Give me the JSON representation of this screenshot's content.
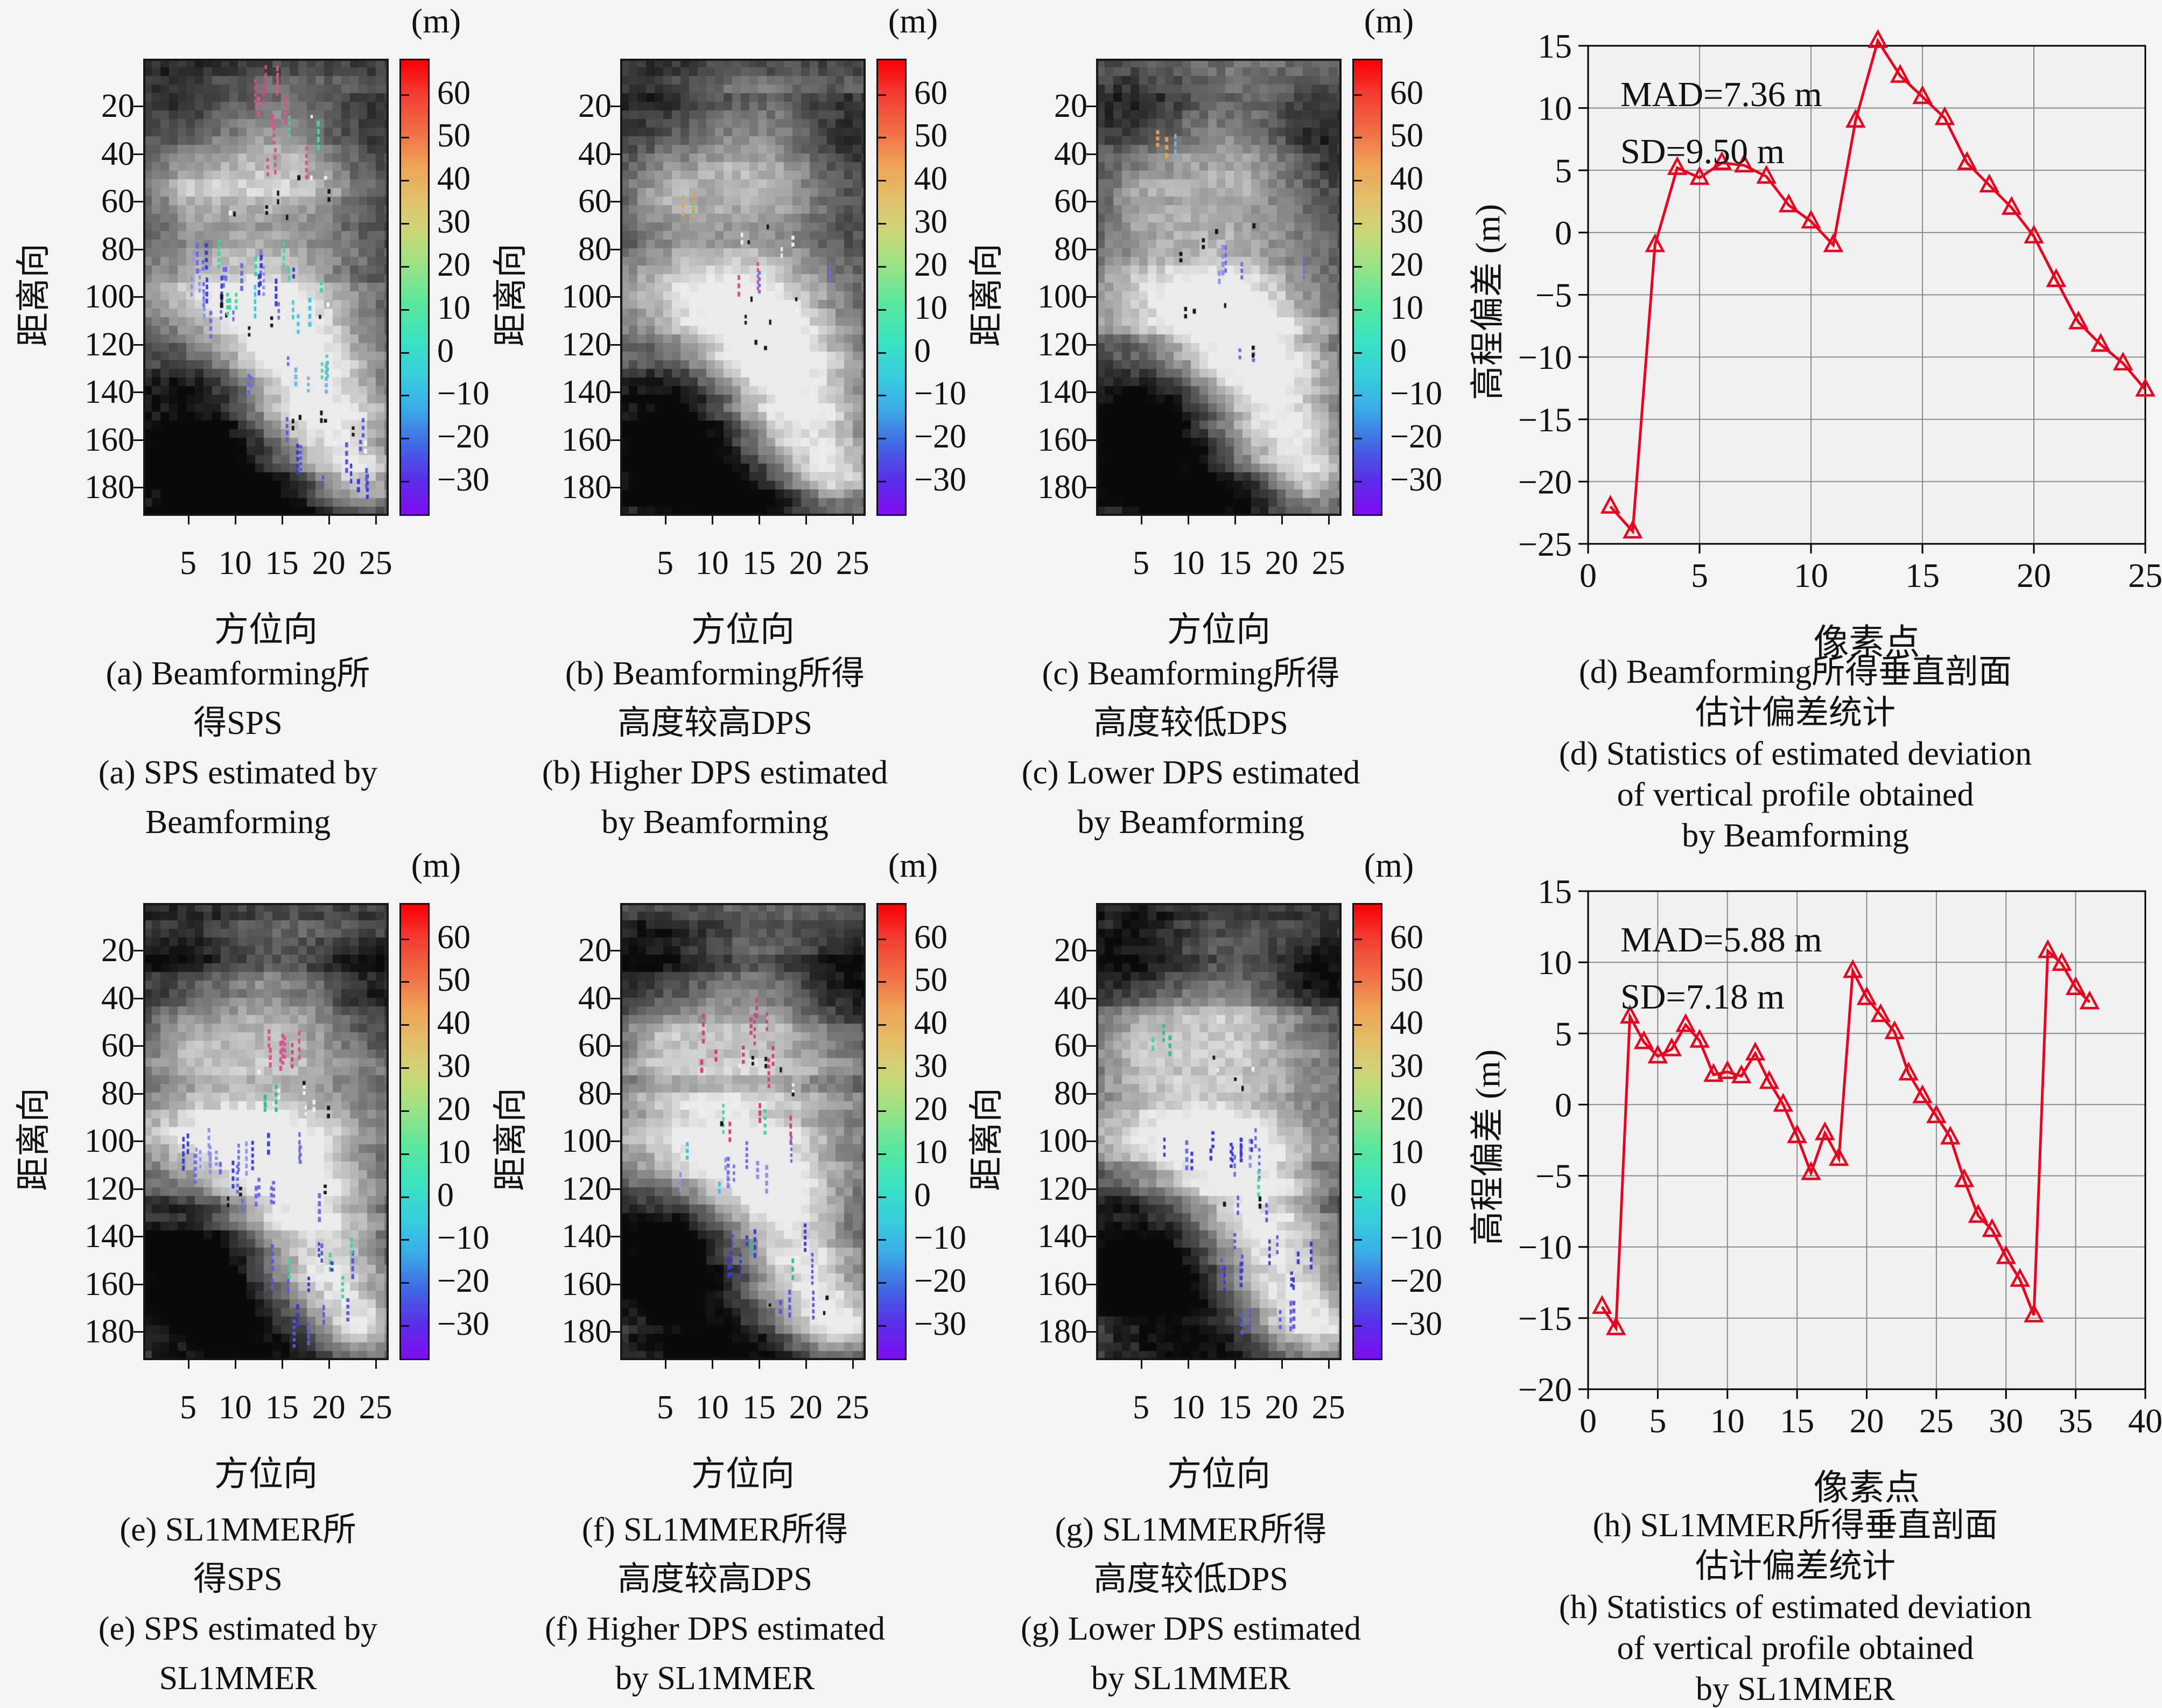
{
  "figure": {
    "background": "#f4f3f5",
    "frame_color": "#000000",
    "grid_color": "#8a8a8a",
    "plot_bg": "#f1f0f2"
  },
  "image_axes": {
    "ylabel": "距离向",
    "xlabel": "方位向",
    "y_ticks": [
      20,
      40,
      60,
      80,
      100,
      120,
      140,
      160,
      180
    ],
    "x_ticks": [
      5,
      10,
      15,
      20,
      25
    ]
  },
  "colorbar": {
    "title": "(m)",
    "ticks": [
      60,
      50,
      40,
      30,
      20,
      10,
      0,
      -10,
      -20,
      -30
    ],
    "gradient": [
      "#f90008",
      "#f23f33",
      "#f06c44",
      "#efa255",
      "#e2c16b",
      "#c9d878",
      "#93e388",
      "#57e79e",
      "#3ce2c0",
      "#37cfdd",
      "#3aaae6",
      "#4169e3",
      "#5a2fe8",
      "#7d0df2"
    ]
  },
  "panels": [
    {
      "id": "a",
      "seed": 101,
      "caption": [
        "(a) Beamforming所",
        "得SPS",
        "(a) SPS estimated by",
        "Beamforming"
      ],
      "scatter": [
        [
          0.52,
          0.06,
          0.14,
          0.04,
          5,
          [
            "#d9548c",
            "#c74b7f"
          ]
        ],
        [
          0.58,
          0.13,
          0.3,
          0.08,
          7,
          [
            "#d9548c",
            "#3fd9a8",
            "#f2f2f2"
          ]
        ],
        [
          0.55,
          0.28,
          0.52,
          0.14,
          12,
          [
            "#f2f2f2",
            "#141414",
            "#d9548c"
          ]
        ],
        [
          0.45,
          0.47,
          0.62,
          0.09,
          24,
          [
            "#6b6be4",
            "#8f8fee",
            "#3b3bd4",
            "#42d6a4"
          ]
        ],
        [
          0.5,
          0.56,
          0.55,
          0.07,
          16,
          [
            "#6b6be4",
            "#8f8fee",
            "#38c8e8",
            "#f2f2f2",
            "#141414"
          ]
        ],
        [
          0.62,
          0.68,
          0.42,
          0.08,
          9,
          [
            "#6b6be4",
            "#42d6a4",
            "#7ab4e8"
          ]
        ],
        [
          0.72,
          0.8,
          0.4,
          0.1,
          11,
          [
            "#5a5ae0",
            "#141414",
            "#f2f2f2"
          ]
        ],
        [
          0.77,
          0.9,
          0.3,
          0.07,
          8,
          [
            "#5a5ae0",
            "#3b3bd4"
          ]
        ],
        [
          0.34,
          0.52,
          0.1,
          0.04,
          3,
          [
            "#42d6a4"
          ]
        ]
      ]
    },
    {
      "id": "b",
      "seed": 202,
      "caption": [
        "(b) Beamforming所得",
        "高度较高DPS",
        "(b) Higher DPS estimated",
        "by Beamforming"
      ],
      "scatter": [
        [
          0.3,
          0.33,
          0.1,
          0.03,
          3,
          [
            "#42d6a4",
            "#e8a050"
          ]
        ],
        [
          0.52,
          0.38,
          0.4,
          0.1,
          5,
          [
            "#141414",
            "#f2f2f2"
          ]
        ],
        [
          0.55,
          0.48,
          0.16,
          0.04,
          3,
          [
            "#6b6be4",
            "#d9548c"
          ]
        ],
        [
          0.88,
          0.47,
          0.06,
          0.03,
          1,
          [
            "#6b6be4"
          ]
        ],
        [
          0.58,
          0.6,
          0.25,
          0.08,
          4,
          [
            "#141414"
          ]
        ],
        [
          0.6,
          0.55,
          0.3,
          0.05,
          3,
          [
            "#141414",
            "#f2f2f2"
          ]
        ]
      ]
    },
    {
      "id": "c",
      "seed": 303,
      "caption": [
        "(c) Beamforming所得",
        "高度较低DPS",
        "(c) Lower DPS estimated",
        "by Beamforming"
      ],
      "scatter": [
        [
          0.3,
          0.18,
          0.1,
          0.03,
          3,
          [
            "#e8a050",
            "#42d6a4",
            "#7ab4e8"
          ]
        ],
        [
          0.55,
          0.46,
          0.12,
          0.05,
          4,
          [
            "#6b6be4",
            "#8f8fee"
          ]
        ],
        [
          0.85,
          0.47,
          0.05,
          0.03,
          1,
          [
            "#6b6be4"
          ]
        ],
        [
          0.52,
          0.4,
          0.35,
          0.08,
          4,
          [
            "#141414"
          ]
        ],
        [
          0.55,
          0.62,
          0.2,
          0.06,
          3,
          [
            "#141414",
            "#6b6be4"
          ]
        ],
        [
          0.48,
          0.55,
          0.3,
          0.05,
          3,
          [
            "#141414"
          ]
        ]
      ]
    },
    {
      "id": "e",
      "seed": 505,
      "caption": [
        "(e) SL1MMER所",
        "得SPS",
        "(e) SPS estimated by",
        "SL1MMER"
      ],
      "scatter": [
        [
          0.57,
          0.31,
          0.14,
          0.08,
          7,
          [
            "#d93a6e",
            "#d9548c"
          ]
        ],
        [
          0.62,
          0.41,
          0.3,
          0.1,
          8,
          [
            "#f2f2f2",
            "#141414"
          ]
        ],
        [
          0.5,
          0.445,
          0.1,
          0.03,
          3,
          [
            "#2fbf8f"
          ]
        ],
        [
          0.4,
          0.55,
          0.5,
          0.09,
          18,
          [
            "#6b6be4",
            "#8f8fee",
            "#3b3bd4"
          ]
        ],
        [
          0.55,
          0.63,
          0.48,
          0.07,
          10,
          [
            "#6b6be4",
            "#141414"
          ]
        ],
        [
          0.68,
          0.78,
          0.42,
          0.12,
          12,
          [
            "#5a5ae0",
            "#3b3bd4",
            "#42d6a4"
          ]
        ],
        [
          0.74,
          0.92,
          0.28,
          0.06,
          6,
          [
            "#5a5ae0",
            "#3b3bd4"
          ]
        ]
      ]
    },
    {
      "id": "f",
      "seed": 606,
      "caption": [
        "(f) SL1MMER所得",
        "高度较高DPS",
        "(f) Higher DPS estimated",
        "by SL1MMER"
      ],
      "scatter": [
        [
          0.5,
          0.3,
          0.34,
          0.16,
          10,
          [
            "#d93a6e",
            "#c74b7f"
          ]
        ],
        [
          0.6,
          0.47,
          0.38,
          0.08,
          6,
          [
            "#d93a6e",
            "#42d6a4",
            "#141414"
          ]
        ],
        [
          0.48,
          0.58,
          0.5,
          0.09,
          11,
          [
            "#6b6be4",
            "#8f8fee",
            "#38c8e8"
          ]
        ],
        [
          0.65,
          0.76,
          0.42,
          0.1,
          10,
          [
            "#5a5ae0",
            "#3b3bd4",
            "#2fbf8f"
          ]
        ],
        [
          0.74,
          0.9,
          0.3,
          0.07,
          6,
          [
            "#5a5ae0",
            "#141414"
          ]
        ],
        [
          0.55,
          0.38,
          0.4,
          0.1,
          6,
          [
            "#141414",
            "#f2f2f2"
          ]
        ]
      ]
    },
    {
      "id": "g",
      "seed": 707,
      "caption": [
        "(g) SL1MMER所得",
        "高度较低DPS",
        "(g) Lower DPS estimated",
        "by SL1MMER"
      ],
      "scatter": [
        [
          0.27,
          0.3,
          0.09,
          0.03,
          3,
          [
            "#2fbf8f",
            "#42d6a4"
          ]
        ],
        [
          0.55,
          0.36,
          0.38,
          0.1,
          5,
          [
            "#141414",
            "#f2f2f2"
          ]
        ],
        [
          0.46,
          0.55,
          0.52,
          0.08,
          14,
          [
            "#6b6be4",
            "#8f8fee",
            "#3b3bd4"
          ]
        ],
        [
          0.6,
          0.64,
          0.3,
          0.07,
          5,
          [
            "#42d6a4",
            "#5a5ae0",
            "#141414"
          ]
        ],
        [
          0.68,
          0.78,
          0.42,
          0.12,
          11,
          [
            "#5a5ae0",
            "#3b3bd4"
          ]
        ],
        [
          0.72,
          0.91,
          0.28,
          0.06,
          5,
          [
            "#5a5ae0"
          ]
        ]
      ]
    }
  ],
  "chart_data": [
    {
      "id": "d",
      "type": "line",
      "marker": "open-triangle-up",
      "line_color": "#e8001e",
      "annotation": [
        "MAD=7.36 m",
        "SD=9.50 m"
      ],
      "xlabel": "像素点",
      "ylabel": "高程偏差 (m)",
      "xlim": [
        0,
        25
      ],
      "ylim": [
        -25,
        15
      ],
      "xticks": [
        0,
        5,
        10,
        15,
        20,
        25
      ],
      "yticks": [
        -25,
        -20,
        -15,
        -10,
        -5,
        0,
        5,
        10,
        15
      ],
      "grid": "on",
      "legend": "none",
      "x": [
        1,
        2,
        3,
        4,
        5,
        6,
        7,
        8,
        9,
        10,
        11,
        12,
        13,
        14,
        15,
        16,
        17,
        18,
        19,
        20,
        21,
        22,
        23,
        24,
        25
      ],
      "y": [
        -22,
        -24,
        -1,
        5.2,
        4.4,
        5.6,
        5.4,
        4.5,
        2.2,
        0.9,
        -1,
        9,
        15.4,
        12.6,
        10.9,
        9.2,
        5.6,
        3.8,
        2,
        -0.3,
        -3.8,
        -7.2,
        -9,
        -10.5,
        -12.6
      ],
      "caption": [
        "(d) Beamforming所得垂直剖面",
        "估计偏差统计",
        "(d) Statistics of estimated deviation",
        "of vertical profile obtained",
        "by Beamforming"
      ]
    },
    {
      "id": "h",
      "type": "line",
      "marker": "open-triangle-up",
      "line_color": "#e8001e",
      "annotation": [
        "MAD=5.88 m",
        "SD=7.18 m"
      ],
      "xlabel": "像素点",
      "ylabel": "高程偏差 (m)",
      "xlim": [
        0,
        40
      ],
      "ylim": [
        -20,
        15
      ],
      "xticks": [
        0,
        5,
        10,
        15,
        20,
        25,
        30,
        35,
        40
      ],
      "yticks": [
        -20,
        -15,
        -10,
        -5,
        0,
        5,
        10,
        15
      ],
      "grid": "on",
      "legend": "none",
      "x": [
        1,
        2,
        3,
        4,
        5,
        6,
        7,
        8,
        9,
        10,
        11,
        12,
        13,
        14,
        15,
        16,
        17,
        18,
        19,
        20,
        21,
        22,
        23,
        24,
        25,
        26,
        27,
        28,
        29,
        30,
        31,
        32,
        33,
        34,
        35,
        36
      ],
      "y": [
        -14.2,
        -15.7,
        6.2,
        4.4,
        3.4,
        3.9,
        5.6,
        4.5,
        2.1,
        2.3,
        2.0,
        3.6,
        1.6,
        0.0,
        -2.2,
        -4.8,
        -2.0,
        -3.8,
        9.4,
        7.5,
        6.3,
        5.1,
        2.2,
        0.6,
        -0.8,
        -2.3,
        -5.3,
        -7.8,
        -8.8,
        -10.7,
        -12.3,
        -14.8,
        10.8,
        9.9,
        8.2,
        7.2
      ],
      "caption": [
        "(h) SL1MMER所得垂直剖面",
        "估计偏差统计",
        "(h) Statistics of estimated deviation",
        "of vertical profile obtained",
        "by SL1MMER"
      ]
    }
  ]
}
